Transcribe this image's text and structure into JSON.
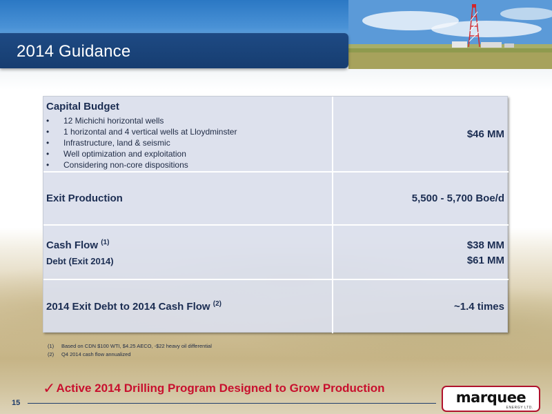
{
  "header": {
    "title": "2014 Guidance"
  },
  "table": {
    "capital_budget": {
      "label": "Capital Budget",
      "items": [
        "12 Michichi horizontal wells",
        "1 horizontal and 4 vertical wells at Lloydminster",
        "Infrastructure, land & seismic",
        "Well optimization and exploitation",
        "Considering non-core dispositions"
      ],
      "value": "$46 MM"
    },
    "exit_production": {
      "label": "Exit Production",
      "value": "5,500 - 5,700 Boe/d"
    },
    "cash_flow": {
      "label": "Cash Flow",
      "note": "(1)",
      "value": "$38 MM"
    },
    "debt": {
      "label": "Debt (Exit 2014)",
      "value": "$61 MM"
    },
    "debt_ratio": {
      "label": "2014 Exit Debt to 2014 Cash Flow",
      "note": "(2)",
      "value": "~1.4 times"
    }
  },
  "footnotes": [
    {
      "num": "(1)",
      "text": "Based on CDN $100 WTI, $4.25 AECO, -$22 heavy oil differential"
    },
    {
      "num": "(2)",
      "text": "Q4 2014 cash flow annualized"
    }
  ],
  "tagline": {
    "check": "✓",
    "text": "Active 2014 Drilling Program Designed to Grow Production"
  },
  "footer": {
    "page_number": "15"
  },
  "logo": {
    "word": "marquee",
    "sub": "ENERGY LTD."
  },
  "colors": {
    "header_bg": "#1e4a84",
    "accent_red": "#c8102e",
    "table_bg": "#dadfec",
    "text_navy": "#1b2d52"
  }
}
